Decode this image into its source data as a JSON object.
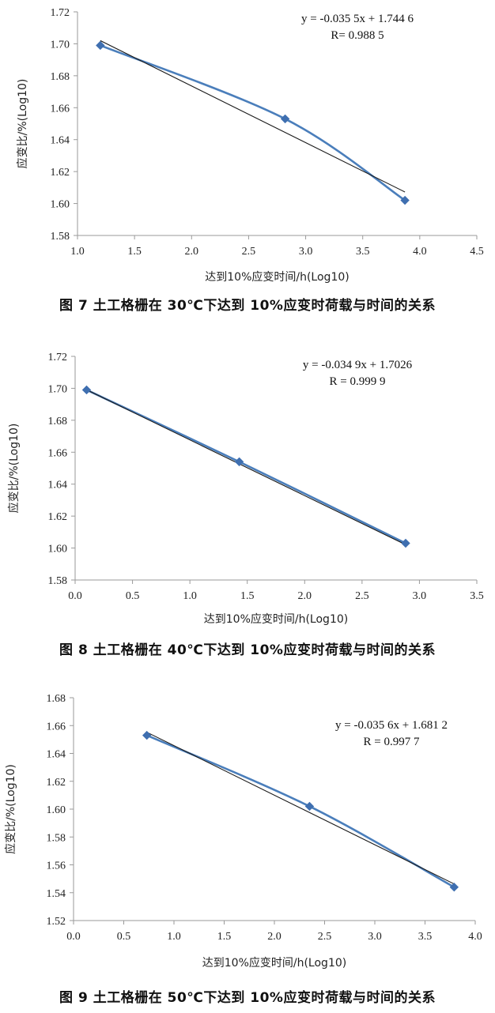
{
  "chart_data": [
    {
      "type": "scatter",
      "caption": "图 7  土工格栅在 30℃下达到 10%应变时荷载与时间的关系",
      "xlabel": "达到10%应变时间/h(Log10)",
      "ylabel": "应变比/%(Log10)",
      "xlim": [
        1.0,
        4.5
      ],
      "ylim": [
        1.58,
        1.72
      ],
      "xticks": [
        "1.0",
        "1.5",
        "2.0",
        "2.5",
        "3.0",
        "3.5",
        "4.0",
        "4.5"
      ],
      "yticks": [
        "1.58",
        "1.60",
        "1.62",
        "1.64",
        "1.66",
        "1.68",
        "1.70",
        "1.72"
      ],
      "points": [
        [
          1.2,
          1.699
        ],
        [
          2.82,
          1.653
        ],
        [
          3.87,
          1.602
        ]
      ],
      "trendline": {
        "slope": -0.0355,
        "intercept": 1.7446,
        "x_range": [
          1.2,
          3.87
        ]
      },
      "equation": "y = -0.035 5x + 1.744 6",
      "r_text": "R= 0.988 5"
    },
    {
      "type": "scatter",
      "caption": "图 8  土工格栅在 40℃下达到 10%应变时荷载与时间的关系",
      "xlabel": "达到10%应变时间/h(Log10)",
      "ylabel": "应变比/%(Log10)",
      "xlim": [
        0.0,
        3.5
      ],
      "ylim": [
        1.58,
        1.72
      ],
      "xticks": [
        "0.0",
        "0.5",
        "1.0",
        "1.5",
        "2.0",
        "2.5",
        "3.0",
        "3.5"
      ],
      "yticks": [
        "1.58",
        "1.60",
        "1.62",
        "1.64",
        "1.66",
        "1.68",
        "1.70",
        "1.72"
      ],
      "points": [
        [
          0.1,
          1.699
        ],
        [
          1.43,
          1.654
        ],
        [
          2.88,
          1.603
        ]
      ],
      "trendline": {
        "slope": -0.0349,
        "intercept": 1.7026,
        "x_range": [
          0.1,
          2.88
        ]
      },
      "equation": "y = -0.034 9x + 1.7026",
      "r_text": "R = 0.999 9"
    },
    {
      "type": "scatter",
      "caption": "图 9  土工格栅在 50℃下达到 10%应变时荷载与时间的关系",
      "xlabel": "达到10%应变时间/h(Log10)",
      "ylabel": "应变比/%(Log10)",
      "xlim": [
        0.0,
        4.0
      ],
      "ylim": [
        1.52,
        1.68
      ],
      "xticks": [
        "0.0",
        "0.5",
        "1.0",
        "1.5",
        "2.0",
        "2.5",
        "3.0",
        "3.5",
        "4.0"
      ],
      "yticks": [
        "1.52",
        "1.54",
        "1.56",
        "1.58",
        "1.60",
        "1.62",
        "1.64",
        "1.66",
        "1.68"
      ],
      "points": [
        [
          0.73,
          1.653
        ],
        [
          2.35,
          1.602
        ],
        [
          3.79,
          1.544
        ]
      ],
      "trendline": {
        "slope": -0.0356,
        "intercept": 1.6812,
        "x_range": [
          0.73,
          3.79
        ]
      },
      "equation": "y = -0.035 6x + 1.681 2",
      "r_text": "R = 0.997 7"
    }
  ],
  "colors": {
    "series": "#4a7ebb",
    "marker": "#3f6fb0",
    "trendline": "#1a1a1a",
    "axis": "#9a9a9a"
  }
}
